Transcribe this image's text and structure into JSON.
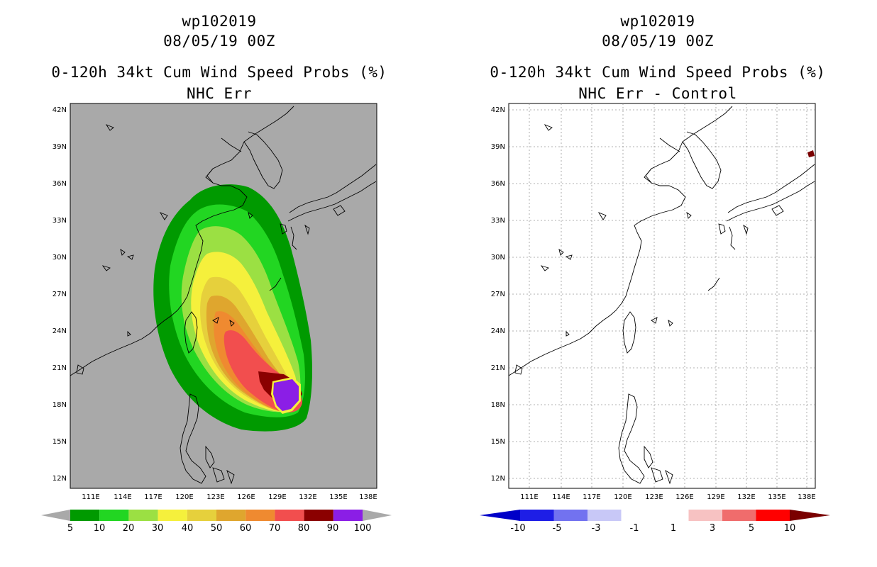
{
  "left_panel": {
    "title_line1": "wp102019",
    "title_line2": "08/05/19 00Z",
    "title_line3": "0-120h 34kt Cum Wind Speed Probs (%)",
    "title_line4": "NHC Err",
    "background_color": "#a9a9a9",
    "lat_labels": [
      "42N",
      "39N",
      "36N",
      "33N",
      "30N",
      "27N",
      "24N",
      "21N",
      "18N",
      "15N",
      "12N"
    ],
    "lon_labels": [
      "111E",
      "114E",
      "117E",
      "120E",
      "123E",
      "126E",
      "129E",
      "132E",
      "135E",
      "138E"
    ],
    "colorbar": {
      "colors": [
        "#009a00",
        "#22d622",
        "#9be043",
        "#f5f03c",
        "#e6d03c",
        "#dfa62e",
        "#ef8a30",
        "#f24e4e",
        "#8b0000",
        "#8b1ee6"
      ],
      "labels": [
        "5",
        "10",
        "20",
        "30",
        "40",
        "50",
        "60",
        "70",
        "80",
        "90",
        "100"
      ],
      "end_arrow_color": "#a9a9a9"
    }
  },
  "right_panel": {
    "title_line1": "wp102019",
    "title_line2": "08/05/19 00Z",
    "title_line3": "0-120h 34kt Cum Wind Speed Probs (%)",
    "title_line4": "NHC Err - Control",
    "background_color": "#ffffff",
    "lat_labels": [
      "42N",
      "39N",
      "36N",
      "33N",
      "30N",
      "27N",
      "24N",
      "21N",
      "18N",
      "15N",
      "12N"
    ],
    "lon_labels": [
      "111E",
      "114E",
      "117E",
      "120E",
      "123E",
      "126E",
      "129E",
      "132E",
      "135E",
      "138E"
    ],
    "colorbar": {
      "colors": [
        "#0000c8",
        "#1e1ee6",
        "#7272f0",
        "#c8c8f7",
        "#ffffff",
        "#ffffff",
        "#f7c2c2",
        "#f06c6c",
        "#ff0000",
        "#7a0000"
      ],
      "labels": [
        "-10",
        "-5",
        "-3",
        "-1",
        "1",
        "3",
        "5",
        "10"
      ]
    }
  }
}
